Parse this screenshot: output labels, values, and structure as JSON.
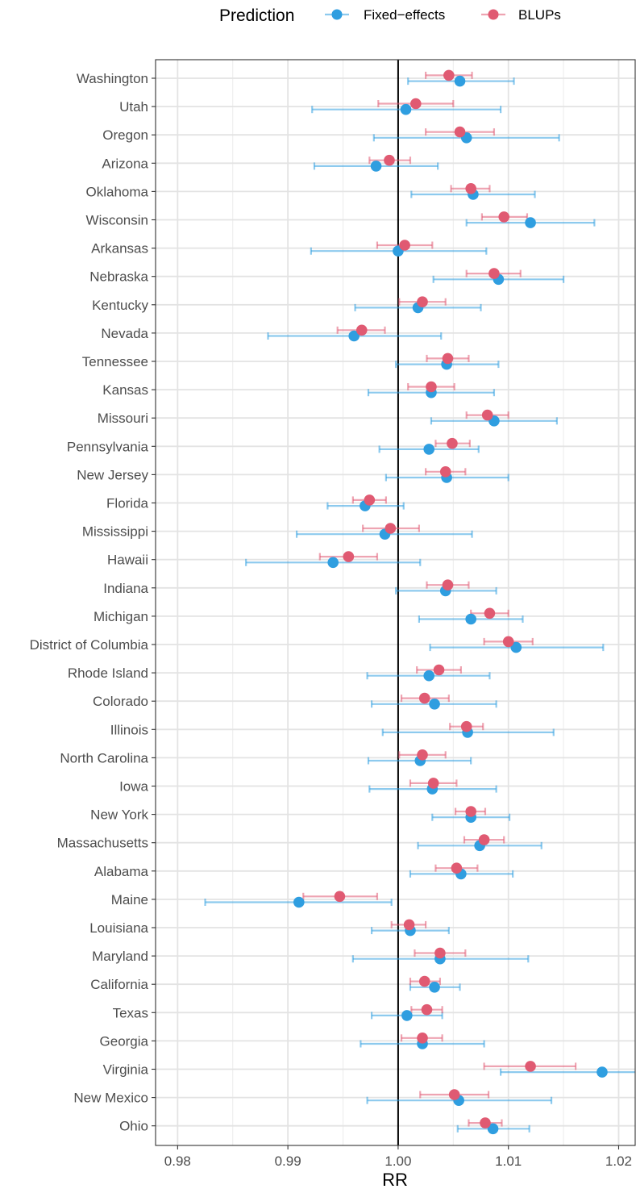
{
  "chart_data": {
    "type": "forest",
    "xlabel": "RR",
    "xlim": [
      0.978,
      1.0215
    ],
    "x_ticks": [
      0.98,
      0.99,
      1.0,
      1.01,
      1.02
    ],
    "x_tick_labels": [
      "0.98",
      "0.99",
      "1.00",
      "1.01",
      "1.02"
    ],
    "reference_line": 1.0,
    "legend": {
      "title": "Prediction",
      "position": "top",
      "entries": [
        "Fixed−effects",
        "BLUPs"
      ]
    },
    "colors": {
      "Fixed-effects": "#2f9ee0",
      "BLUPs": "#e05a72"
    },
    "grid": true,
    "rows": [
      {
        "label": "Washington",
        "fe": [
          1.0056,
          1.0009,
          1.0105
        ],
        "blup": [
          1.0046,
          1.0025,
          1.0067
        ]
      },
      {
        "label": "Utah",
        "fe": [
          1.0007,
          0.9922,
          1.0093
        ],
        "blup": [
          1.0016,
          0.9982,
          1.005
        ]
      },
      {
        "label": "Oregon",
        "fe": [
          1.0062,
          0.9978,
          1.0146
        ],
        "blup": [
          1.0056,
          1.0025,
          1.0087
        ]
      },
      {
        "label": "Arizona",
        "fe": [
          0.998,
          0.9924,
          1.0036
        ],
        "blup": [
          0.9992,
          0.9974,
          1.0011
        ]
      },
      {
        "label": "Oklahoma",
        "fe": [
          1.0068,
          1.0012,
          1.0124
        ],
        "blup": [
          1.0066,
          1.0048,
          1.0083
        ]
      },
      {
        "label": "Wisconsin",
        "fe": [
          1.012,
          1.0062,
          1.0178
        ],
        "blup": [
          1.0096,
          1.0076,
          1.0117
        ]
      },
      {
        "label": "Arkansas",
        "fe": [
          1.0,
          0.9921,
          1.008
        ],
        "blup": [
          1.0006,
          0.9981,
          1.0031
        ]
      },
      {
        "label": "Nebraska",
        "fe": [
          1.0091,
          1.0032,
          1.015
        ],
        "blup": [
          1.0087,
          1.0062,
          1.0111
        ]
      },
      {
        "label": "Kentucky",
        "fe": [
          1.0018,
          0.9961,
          1.0075
        ],
        "blup": [
          1.0022,
          1.0001,
          1.0043
        ]
      },
      {
        "label": "Nevada",
        "fe": [
          0.996,
          0.9882,
          1.0039
        ],
        "blup": [
          0.9967,
          0.9945,
          0.9988
        ]
      },
      {
        "label": "Tennessee",
        "fe": [
          1.0044,
          0.9998,
          1.0091
        ],
        "blup": [
          1.0045,
          1.0026,
          1.0064
        ]
      },
      {
        "label": "Kansas",
        "fe": [
          1.003,
          0.9973,
          1.0087
        ],
        "blup": [
          1.003,
          1.0009,
          1.0051
        ]
      },
      {
        "label": "Missouri",
        "fe": [
          1.0087,
          1.003,
          1.0144
        ],
        "blup": [
          1.0081,
          1.0062,
          1.01
        ]
      },
      {
        "label": "Pennsylvania",
        "fe": [
          1.0028,
          0.9983,
          1.0073
        ],
        "blup": [
          1.0049,
          1.0034,
          1.0065
        ]
      },
      {
        "label": "New Jersey",
        "fe": [
          1.0044,
          0.9989,
          1.01
        ],
        "blup": [
          1.0043,
          1.0025,
          1.0061
        ]
      },
      {
        "label": "Florida",
        "fe": [
          0.997,
          0.9936,
          1.0005
        ],
        "blup": [
          0.9974,
          0.9959,
          0.9989
        ]
      },
      {
        "label": "Mississippi",
        "fe": [
          0.9988,
          0.9908,
          1.0067
        ],
        "blup": [
          0.9993,
          0.9968,
          1.0019
        ]
      },
      {
        "label": "Hawaii",
        "fe": [
          0.9941,
          0.9862,
          1.002
        ],
        "blup": [
          0.9955,
          0.9929,
          0.9981
        ]
      },
      {
        "label": "Indiana",
        "fe": [
          1.0043,
          0.9998,
          1.0089
        ],
        "blup": [
          1.0045,
          1.0026,
          1.0064
        ]
      },
      {
        "label": "Michigan",
        "fe": [
          1.0066,
          1.0019,
          1.0113
        ],
        "blup": [
          1.0083,
          1.0066,
          1.01
        ]
      },
      {
        "label": "District of Columbia",
        "fe": [
          1.0107,
          1.0029,
          1.0186
        ],
        "blup": [
          1.01,
          1.0078,
          1.0122
        ]
      },
      {
        "label": "Rhode Island",
        "fe": [
          1.0028,
          0.9972,
          1.0083
        ],
        "blup": [
          1.0037,
          1.0017,
          1.0057
        ]
      },
      {
        "label": "Colorado",
        "fe": [
          1.0033,
          0.9976,
          1.0089
        ],
        "blup": [
          1.0024,
          1.0003,
          1.0046
        ]
      },
      {
        "label": "Illinois",
        "fe": [
          1.0063,
          0.9986,
          1.0141
        ],
        "blup": [
          1.0062,
          1.0047,
          1.0077
        ]
      },
      {
        "label": "North Carolina",
        "fe": [
          1.002,
          0.9973,
          1.0066
        ],
        "blup": [
          1.0022,
          1.0001,
          1.0043
        ]
      },
      {
        "label": "Iowa",
        "fe": [
          1.0031,
          0.9974,
          1.0089
        ],
        "blup": [
          1.0032,
          1.0011,
          1.0053
        ]
      },
      {
        "label": "New York",
        "fe": [
          1.0066,
          1.0031,
          1.0101
        ],
        "blup": [
          1.0066,
          1.0052,
          1.0079
        ]
      },
      {
        "label": "Massachusetts",
        "fe": [
          1.0074,
          1.0018,
          1.013
        ],
        "blup": [
          1.0078,
          1.006,
          1.0096
        ]
      },
      {
        "label": "Alabama",
        "fe": [
          1.0057,
          1.0011,
          1.0104
        ],
        "blup": [
          1.0053,
          1.0034,
          1.0072
        ]
      },
      {
        "label": "Maine",
        "fe": [
          0.991,
          0.9825,
          0.9994
        ],
        "blup": [
          0.9947,
          0.9914,
          0.9981
        ]
      },
      {
        "label": "Louisiana",
        "fe": [
          1.0011,
          0.9976,
          1.0046
        ],
        "blup": [
          1.001,
          0.9994,
          1.0025
        ]
      },
      {
        "label": "Maryland",
        "fe": [
          1.0038,
          0.9959,
          1.0118
        ],
        "blup": [
          1.0038,
          1.0015,
          1.0061
        ]
      },
      {
        "label": "California",
        "fe": [
          1.0033,
          1.0011,
          1.0056
        ],
        "blup": [
          1.0024,
          1.0011,
          1.0038
        ]
      },
      {
        "label": "Texas",
        "fe": [
          1.0008,
          0.9976,
          1.004
        ],
        "blup": [
          1.0026,
          1.0012,
          1.004
        ]
      },
      {
        "label": "Georgia",
        "fe": [
          1.0022,
          0.9966,
          1.0078
        ],
        "blup": [
          1.0022,
          1.0003,
          1.004
        ]
      },
      {
        "label": "Virginia",
        "fe": [
          1.0185,
          1.0093,
          1.022
        ],
        "blup": [
          1.012,
          1.0078,
          1.0161
        ]
      },
      {
        "label": "New Mexico",
        "fe": [
          1.0055,
          0.9972,
          1.0139
        ],
        "blup": [
          1.0051,
          1.002,
          1.0082
        ]
      },
      {
        "label": "Ohio",
        "fe": [
          1.0086,
          1.0054,
          1.0119
        ],
        "blup": [
          1.0079,
          1.0064,
          1.0094
        ]
      }
    ]
  }
}
